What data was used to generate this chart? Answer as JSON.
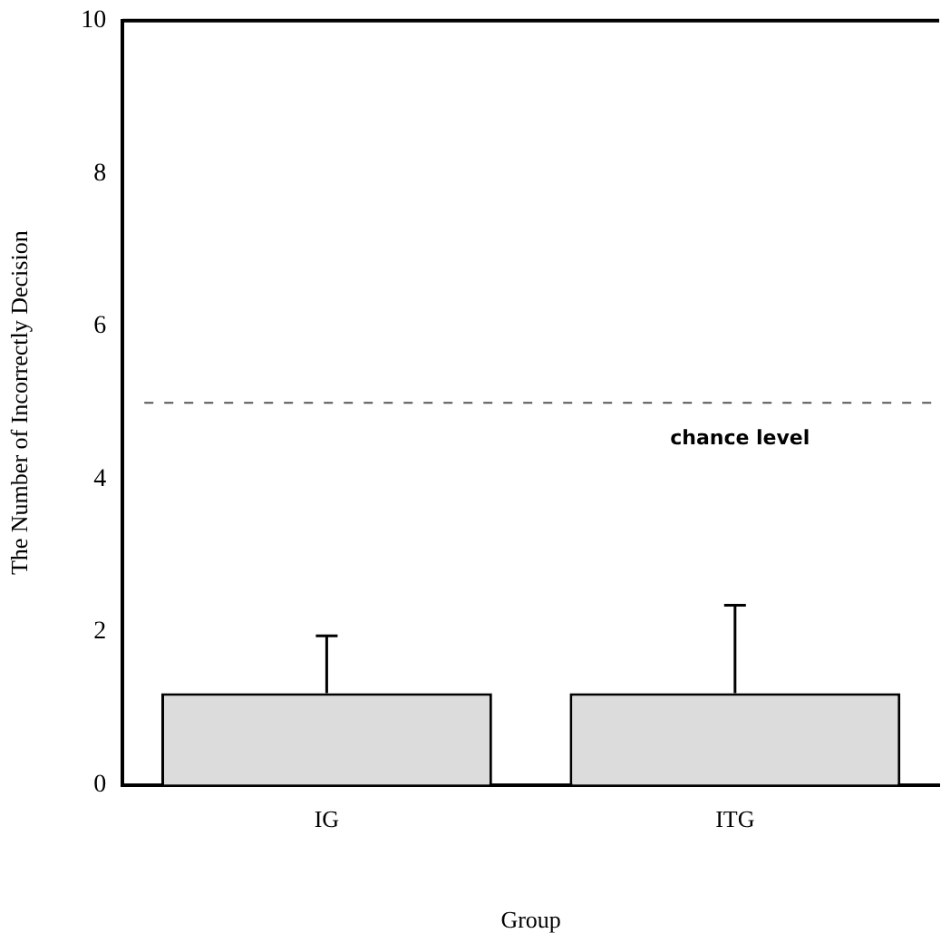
{
  "chart_data": {
    "type": "bar",
    "xlabel": "Group",
    "ylabel": "The Number of Incorrectly Decision",
    "categories": [
      "IG",
      "ITG"
    ],
    "values": [
      1.2,
      1.2
    ],
    "color": "#dcdcdc",
    "errors": [
      [
        1.2,
        1.95
      ],
      [
        1.2,
        2.35
      ]
    ],
    "ylim": [
      0,
      10
    ],
    "yticks": [
      0,
      2,
      4,
      6,
      8,
      10
    ],
    "grid": false,
    "ref_lines": [
      {
        "axis": "y",
        "value": 5,
        "label": "chance level",
        "line_style": "dashed",
        "color": "#555555"
      }
    ]
  }
}
